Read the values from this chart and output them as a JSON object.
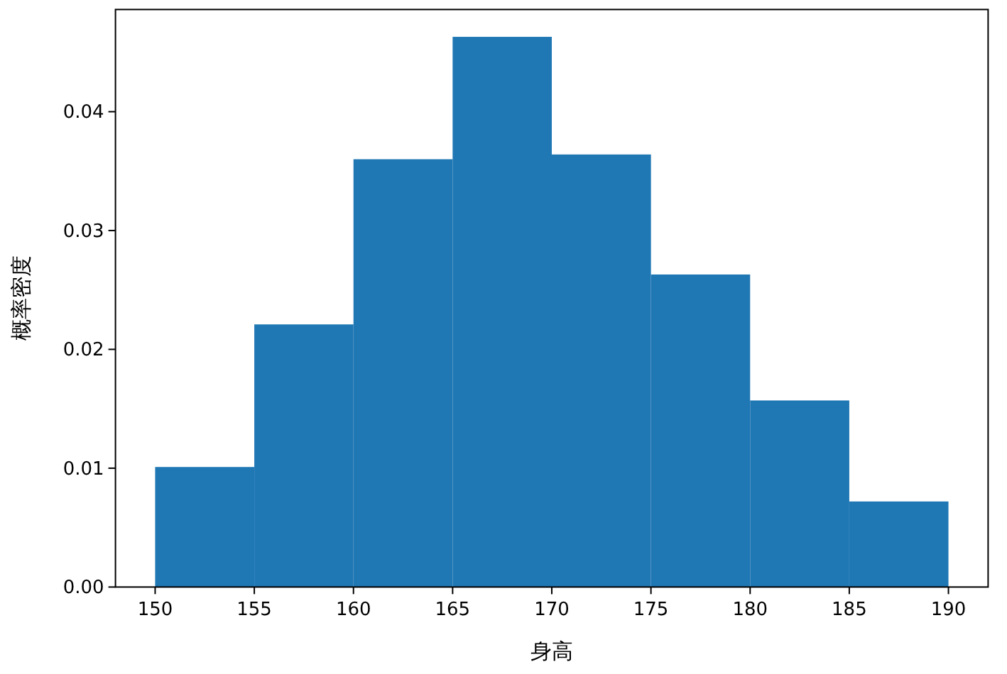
{
  "chart_data": {
    "type": "histogram",
    "xlabel": "身高",
    "ylabel": "概率密度",
    "bins": [
      150,
      155,
      160,
      165,
      170,
      175,
      180,
      185,
      190
    ],
    "values": [
      0.0101,
      0.0221,
      0.036,
      0.0463,
      0.0364,
      0.0263,
      0.0157,
      0.0072
    ],
    "color": "#1f77b4",
    "xlim": [
      148,
      192
    ],
    "ylim": [
      0,
      0.0486
    ],
    "xticks": [
      150,
      155,
      160,
      165,
      170,
      175,
      180,
      185,
      190
    ],
    "yticks": [
      {
        "value": 0,
        "label": "0.00"
      },
      {
        "value": 0.01,
        "label": "0.01"
      },
      {
        "value": 0.02,
        "label": "0.02"
      },
      {
        "value": 0.03,
        "label": "0.03"
      },
      {
        "value": 0.04,
        "label": "0.04"
      }
    ]
  }
}
